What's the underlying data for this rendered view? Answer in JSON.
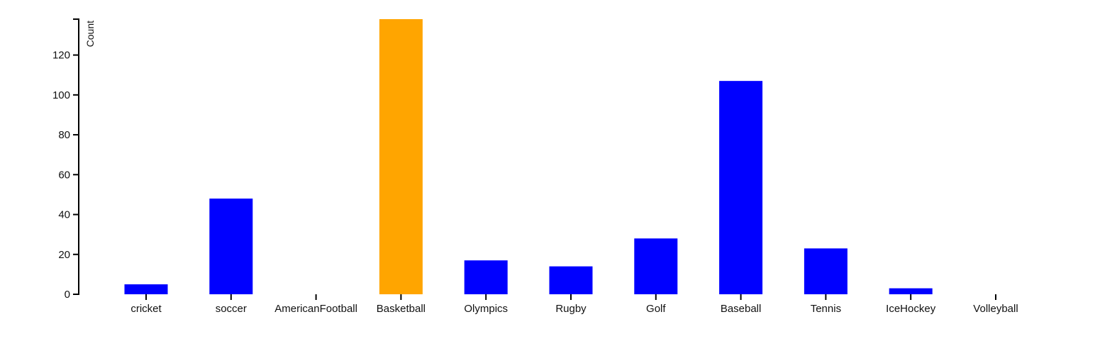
{
  "chart_data": {
    "type": "bar",
    "title": "",
    "xlabel": "",
    "ylabel": "Count",
    "categories": [
      "cricket",
      "soccer",
      "AmericanFootball",
      "Basketball",
      "Olympics",
      "Rugby",
      "Golf",
      "Baseball",
      "Tennis",
      "IceHockey",
      "Volleyball"
    ],
    "values": [
      5,
      48,
      0,
      138,
      17,
      14,
      28,
      107,
      23,
      3,
      0
    ],
    "bar_colors": [
      "#0000ff",
      "#0000ff",
      "#0000ff",
      "#ffa500",
      "#0000ff",
      "#0000ff",
      "#0000ff",
      "#0000ff",
      "#0000ff",
      "#0000ff",
      "#0000ff"
    ],
    "ylim": [
      0,
      138
    ],
    "yticks": [
      0,
      20,
      40,
      60,
      80,
      100,
      120
    ],
    "grid": false,
    "legend": "none"
  }
}
